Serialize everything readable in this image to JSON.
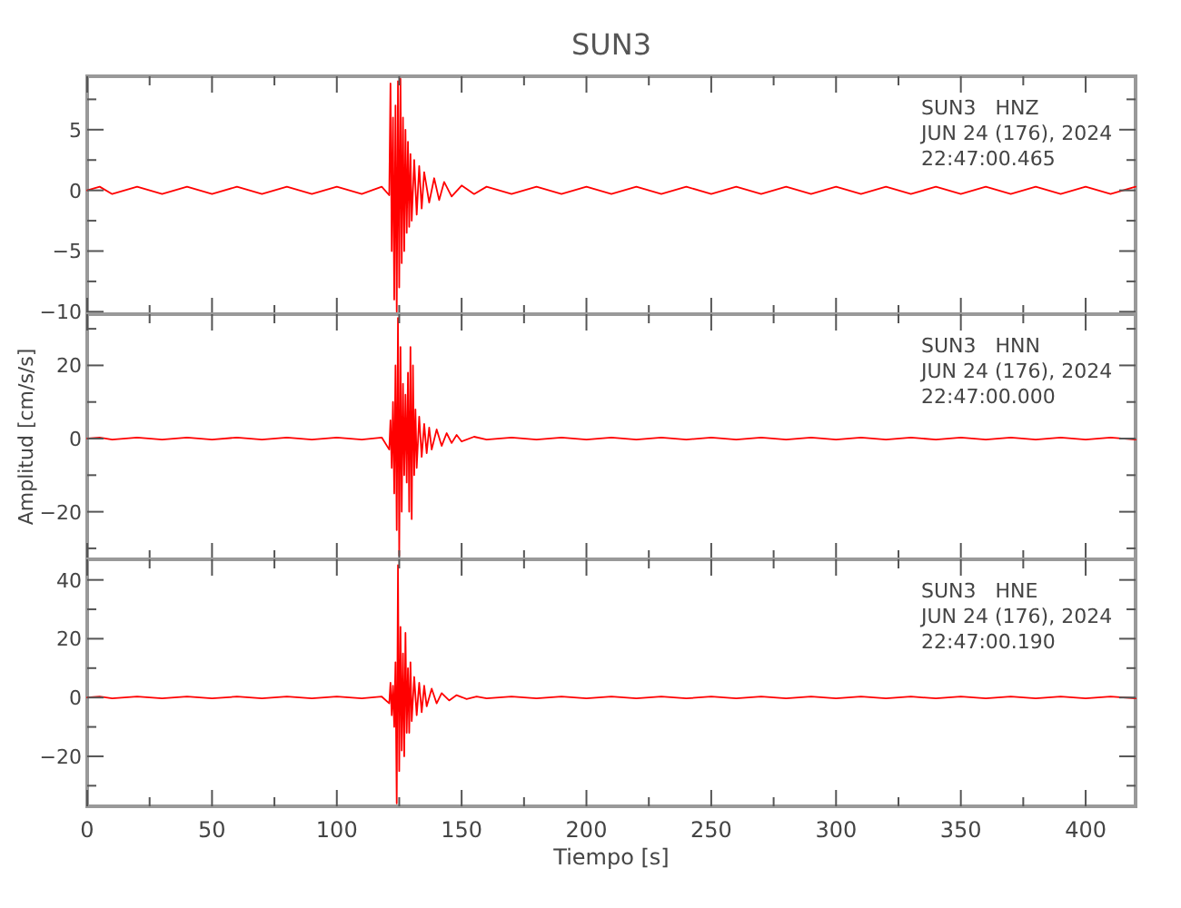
{
  "chart_data": [
    {
      "type": "line",
      "title": "SUN3",
      "x": [
        0,
        5,
        10,
        20,
        30,
        40,
        50,
        60,
        70,
        80,
        90,
        100,
        110,
        118,
        121,
        121.5,
        122,
        122.5,
        123,
        123.5,
        124,
        124.5,
        125,
        125.5,
        126,
        126.5,
        127,
        127.5,
        128,
        128.5,
        129,
        129.5,
        130,
        131,
        132,
        133,
        134,
        135,
        137,
        139,
        141,
        143,
        146,
        150,
        155,
        160,
        170,
        180,
        190,
        200,
        210,
        220,
        230,
        240,
        250,
        260,
        270,
        280,
        290,
        300,
        310,
        320,
        330,
        340,
        350,
        360,
        370,
        380,
        390,
        400,
        410,
        420
      ],
      "series": [
        {
          "color": "#ff0000",
          "values": [
            0,
            0.3,
            -0.3,
            0.3,
            -0.3,
            0.3,
            -0.3,
            0.3,
            -0.3,
            0.3,
            -0.3,
            0.3,
            -0.3,
            0.3,
            -0.4,
            8.8,
            -5,
            6,
            -9,
            7,
            -10,
            9,
            -8,
            9.2,
            -6,
            6,
            -5,
            5,
            -3.5,
            4,
            -3,
            3,
            -2.5,
            2.5,
            -2,
            2,
            -1.5,
            1.5,
            -1,
            1,
            -0.8,
            0.7,
            -0.5,
            0.4,
            -0.3,
            0.3,
            -0.3,
            0.3,
            -0.3,
            0.3,
            -0.3,
            0.3,
            -0.3,
            0.3,
            -0.3,
            0.3,
            -0.3,
            0.3,
            -0.3,
            0.3,
            -0.3,
            0.3,
            -0.3,
            0.3,
            -0.3,
            0.3,
            -0.3,
            0.3,
            -0.3,
            0.3,
            -0.3,
            0.3
          ]
        }
      ],
      "xlim": [
        0,
        420
      ],
      "xticks": [
        0,
        {
          "value": 25,
          "label": null
        },
        50,
        {
          "value": 75,
          "label": null
        },
        100,
        {
          "value": 125,
          "label": null
        },
        150,
        {
          "value": 175,
          "label": null
        },
        200,
        {
          "value": 225,
          "label": null
        },
        250,
        {
          "value": 275,
          "label": null
        },
        300,
        {
          "value": 325,
          "label": null
        },
        350,
        {
          "value": 375,
          "label": null
        },
        400
      ],
      "ylim": [
        -10.2,
        9.4
      ],
      "yticks": [
        -10,
        {
          "value": -7.5,
          "label": null
        },
        -5,
        {
          "value": -2.5,
          "label": null
        },
        0,
        {
          "value": 2.5,
          "label": null
        },
        5,
        {
          "value": 7.5,
          "label": null
        }
      ],
      "tick_labels": "y",
      "grid": false,
      "annotations": [
        "SUN3   HNZ",
        "JUN 24 (176), 2024",
        "22:47:00.465"
      ]
    },
    {
      "type": "line",
      "ylabel": "Amplitud [cm/s/s]",
      "x": [
        0,
        5,
        10,
        20,
        30,
        40,
        50,
        60,
        70,
        80,
        90,
        100,
        110,
        118,
        121,
        121.5,
        122,
        122.5,
        123,
        123.5,
        124,
        124.5,
        125,
        125.5,
        126,
        126.5,
        127,
        127.5,
        128,
        128.5,
        129,
        129.5,
        130,
        130.5,
        131,
        131.5,
        132,
        133,
        134,
        135,
        136,
        137,
        138,
        140,
        142,
        144,
        146,
        148,
        150,
        155,
        160,
        170,
        180,
        190,
        200,
        210,
        220,
        230,
        240,
        250,
        260,
        270,
        280,
        290,
        300,
        310,
        320,
        330,
        340,
        350,
        360,
        370,
        380,
        390,
        400,
        410,
        420
      ],
      "series": [
        {
          "color": "#ff0000",
          "values": [
            0,
            0.3,
            -0.3,
            0.3,
            -0.3,
            0.3,
            -0.3,
            0.3,
            -0.3,
            0.3,
            -0.3,
            0.3,
            -0.3,
            0.3,
            -3,
            5,
            -8,
            10,
            -15,
            20,
            -25,
            33,
            -32,
            25,
            -20,
            15,
            -10,
            12,
            -12,
            18,
            -20,
            25,
            -22,
            20,
            -10,
            8,
            -8,
            6,
            -5,
            4,
            -4,
            3,
            -3,
            2.5,
            -2,
            1.5,
            -1.2,
            1,
            -0.8,
            0.5,
            -0.3,
            0.3,
            -0.3,
            0.3,
            -0.3,
            0.3,
            -0.3,
            0.3,
            -0.3,
            0.3,
            -0.3,
            0.3,
            -0.3,
            0.3,
            -0.3,
            0.3,
            -0.3,
            0.3,
            -0.3,
            0.3,
            -0.3,
            0.3,
            -0.3,
            0.3,
            -0.3,
            0.3,
            -0.3
          ]
        }
      ],
      "xlim": [
        0,
        420
      ],
      "xticks": [
        0,
        {
          "value": 25,
          "label": null
        },
        50,
        {
          "value": 75,
          "label": null
        },
        100,
        {
          "value": 125,
          "label": null
        },
        150,
        {
          "value": 175,
          "label": null
        },
        200,
        {
          "value": 225,
          "label": null
        },
        250,
        {
          "value": 275,
          "label": null
        },
        300,
        {
          "value": 325,
          "label": null
        },
        350,
        {
          "value": 375,
          "label": null
        },
        400
      ],
      "ylim": [
        -33,
        34
      ],
      "yticks": [
        {
          "value": -30,
          "label": null
        },
        -20,
        {
          "value": -10,
          "label": null
        },
        0,
        {
          "value": 10,
          "label": null
        },
        20,
        {
          "value": 30,
          "label": null
        }
      ],
      "tick_labels": "y",
      "grid": false,
      "annotations": [
        "SUN3   HNN",
        "JUN 24 (176), 2024",
        "22:47:00.000"
      ]
    },
    {
      "type": "line",
      "xlabel": "Tiempo [s]",
      "x": [
        0,
        5,
        10,
        20,
        30,
        40,
        50,
        60,
        70,
        80,
        90,
        100,
        110,
        118,
        121,
        121.5,
        122,
        122.5,
        123,
        123.5,
        124,
        124.5,
        125,
        125.5,
        126,
        126.5,
        127,
        127.5,
        128,
        128.5,
        129,
        129.5,
        130,
        131,
        132,
        133,
        134,
        135,
        136,
        138,
        140,
        142,
        145,
        148,
        152,
        156,
        160,
        170,
        180,
        190,
        200,
        210,
        220,
        230,
        240,
        250,
        260,
        270,
        280,
        290,
        300,
        310,
        320,
        330,
        340,
        350,
        360,
        370,
        380,
        390,
        400,
        410,
        420
      ],
      "series": [
        {
          "color": "#ff0000",
          "values": [
            0,
            0.3,
            -0.3,
            0.3,
            -0.3,
            0.3,
            -0.3,
            0.3,
            -0.3,
            0.3,
            -0.3,
            0.3,
            -0.3,
            0.3,
            -2,
            5,
            -6,
            4,
            -10,
            12,
            -36,
            45,
            -25,
            24,
            -18,
            15,
            -20,
            22,
            -12,
            10,
            -12,
            12,
            -8,
            7,
            -6,
            5,
            -5,
            4,
            -3,
            3,
            -2,
            1.5,
            -1,
            0.8,
            -0.5,
            0.3,
            -0.3,
            0.3,
            -0.3,
            0.3,
            -0.3,
            0.3,
            -0.3,
            0.3,
            -0.3,
            0.3,
            -0.3,
            0.3,
            -0.3,
            0.3,
            -0.3,
            0.3,
            -0.3,
            0.3,
            -0.3,
            0.3,
            -0.3,
            0.3,
            -0.3,
            0.3,
            -0.3,
            0.3,
            -0.3
          ]
        }
      ],
      "xlim": [
        0,
        420
      ],
      "xticks": [
        0,
        {
          "value": 25,
          "label": null
        },
        50,
        {
          "value": 75,
          "label": null
        },
        100,
        {
          "value": 125,
          "label": null
        },
        150,
        {
          "value": 175,
          "label": null
        },
        200,
        {
          "value": 225,
          "label": null
        },
        250,
        {
          "value": 275,
          "label": null
        },
        300,
        {
          "value": 325,
          "label": null
        },
        350,
        {
          "value": 375,
          "label": null
        },
        400
      ],
      "ylim": [
        -37,
        47
      ],
      "yticks": [
        {
          "value": -30,
          "label": null
        },
        -20,
        {
          "value": -10,
          "label": null
        },
        0,
        {
          "value": 10,
          "label": null
        },
        20,
        {
          "value": 30,
          "label": null
        },
        40
      ],
      "grid": false,
      "annotations": [
        "SUN3   HNE",
        "JUN 24 (176), 2024",
        "22:47:00.190"
      ]
    }
  ]
}
